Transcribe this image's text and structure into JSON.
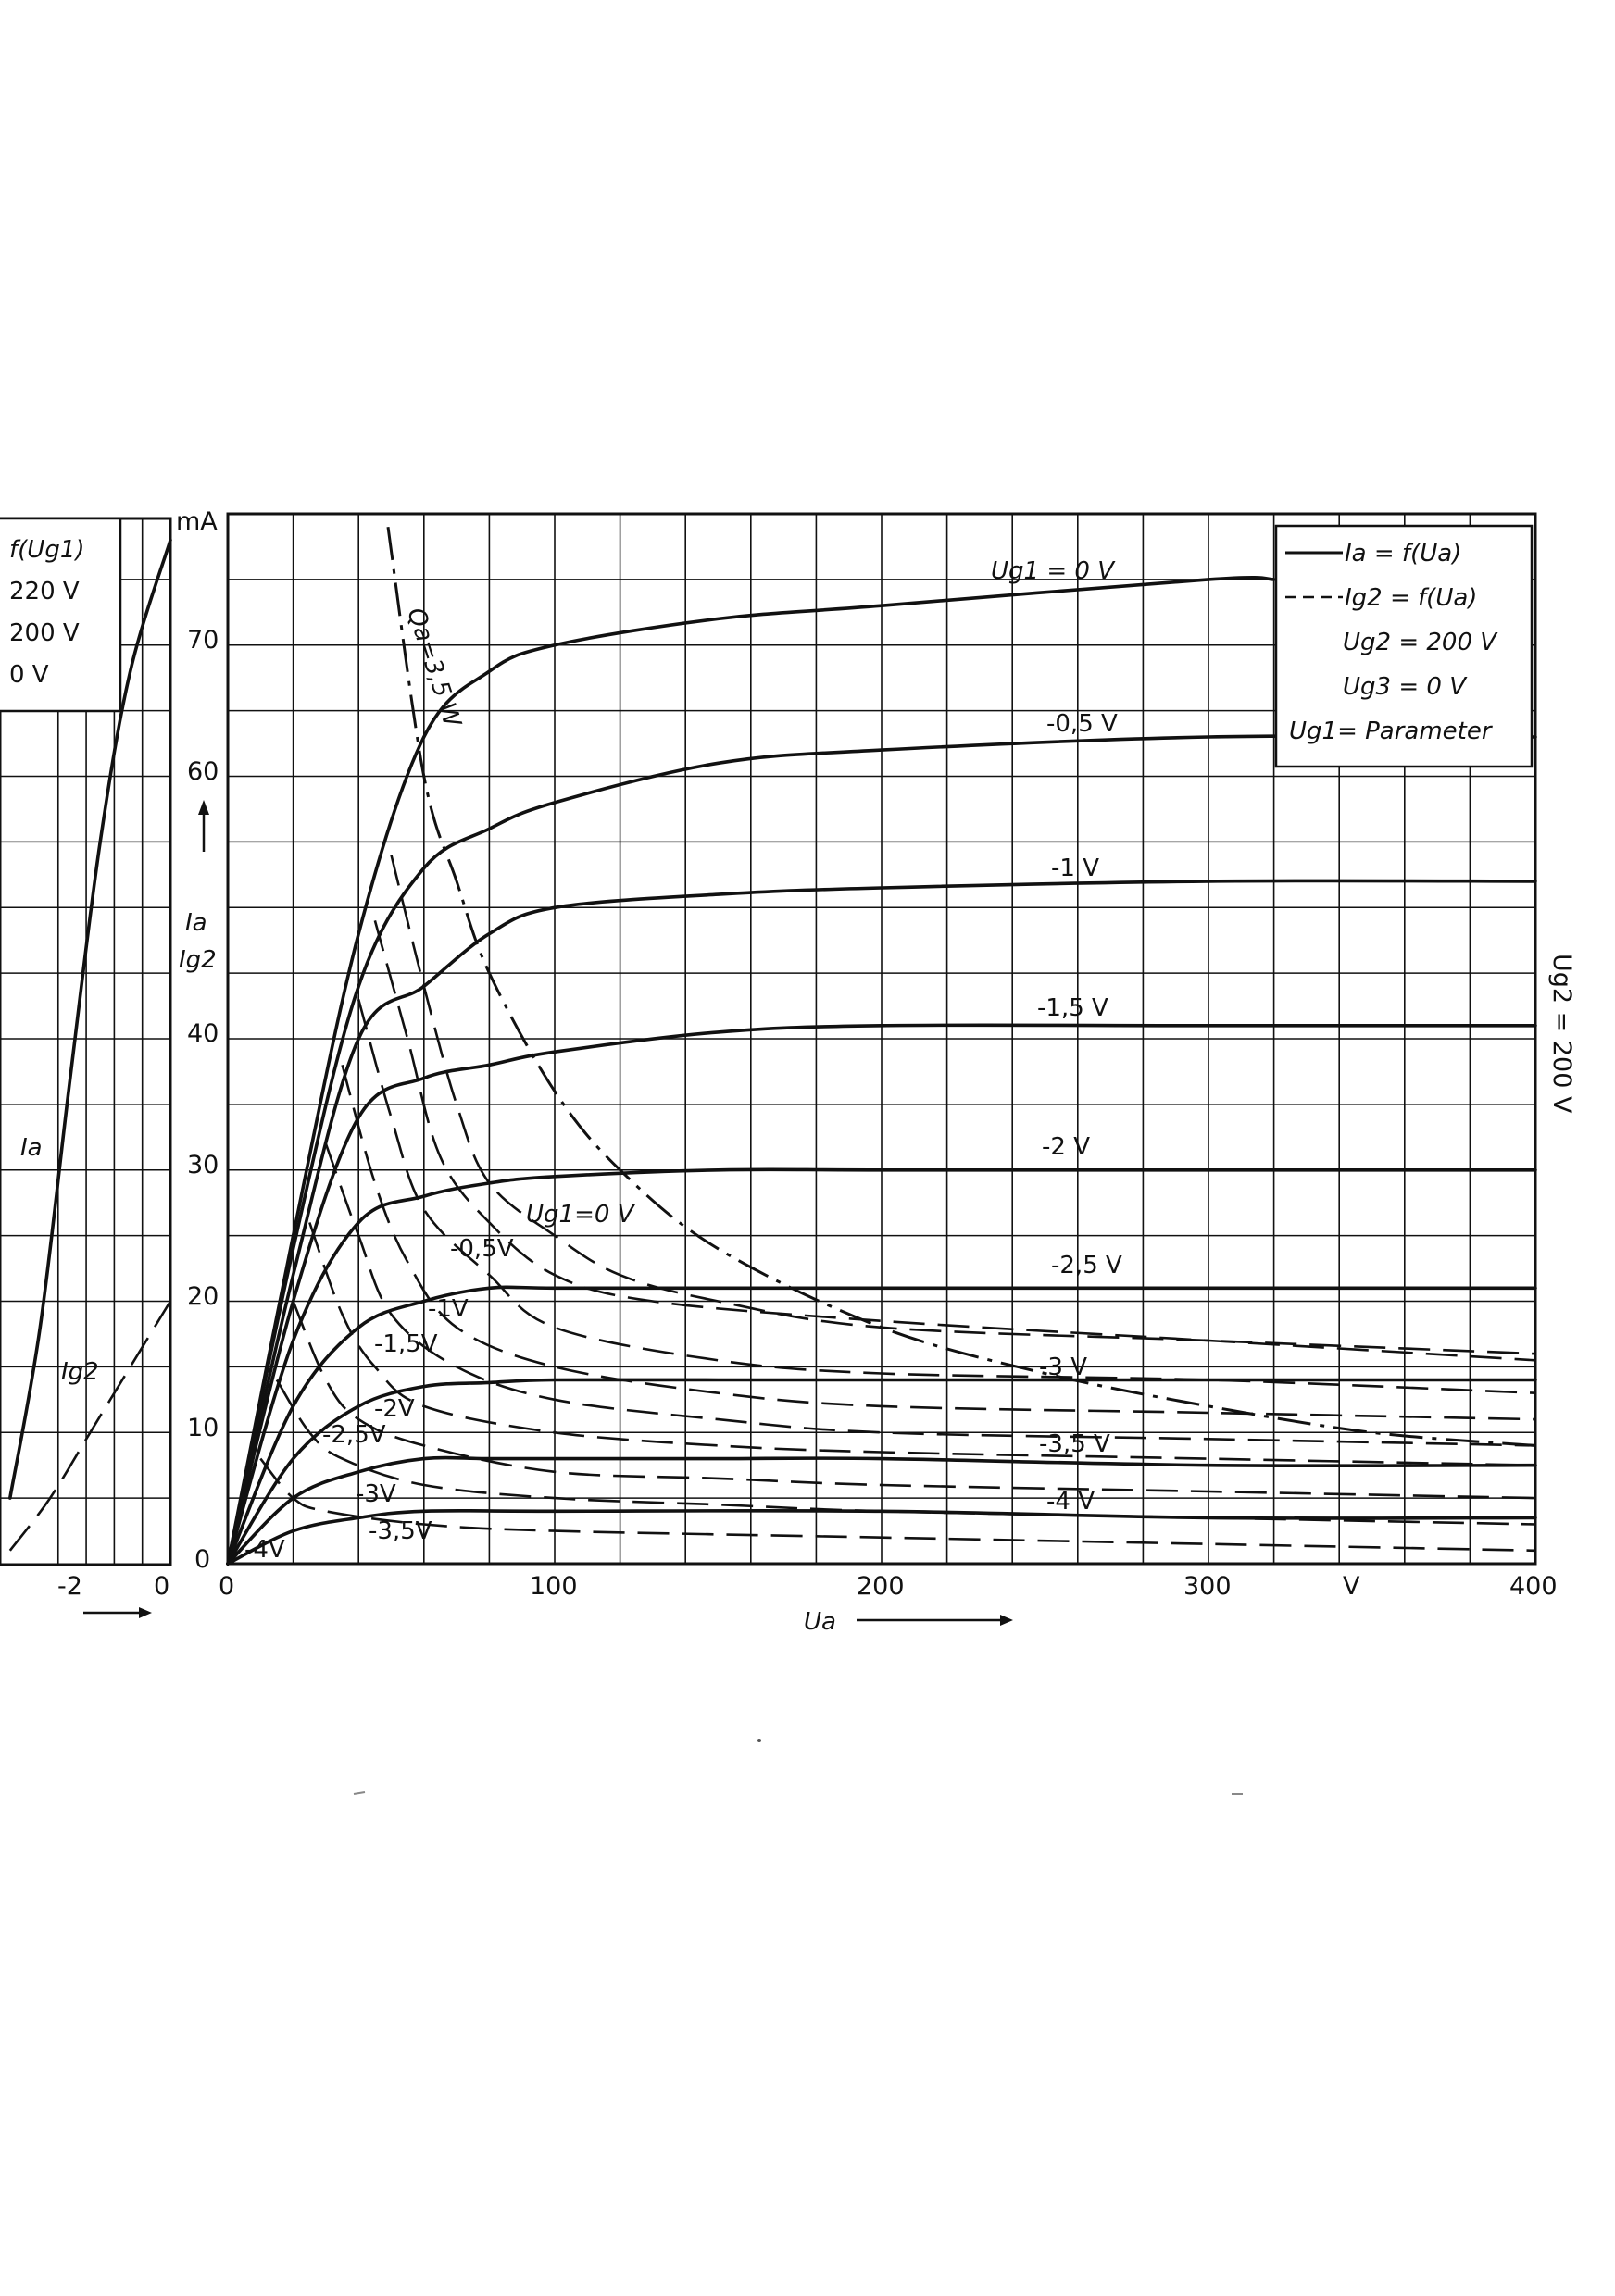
{
  "chart_data": [
    {
      "type": "line",
      "note_visible_labels": [
        "Ia",
        "Ig2",
        "-2",
        "0"
      ],
      "x_ticks": [
        "-2",
        "0"
      ],
      "legend": [
        "f(Ug1)",
        "220 V",
        "200 V",
        "0 V"
      ],
      "series": [
        {
          "name": "Ia",
          "style": "solid",
          "points": [
            [
              -3.2,
              5
            ],
            [
              -2.6,
              18
            ],
            [
              -2,
              37
            ],
            [
              -1.4,
              55
            ],
            [
              -0.8,
              68
            ],
            [
              0,
              78
            ]
          ]
        },
        {
          "name": "Ig2",
          "style": "dashed",
          "points": [
            [
              -3.2,
              1
            ],
            [
              -2.4,
              5
            ],
            [
              -1.6,
              10
            ],
            [
              -0.8,
              15
            ],
            [
              0,
              20
            ]
          ]
        }
      ]
    },
    {
      "type": "line",
      "y_unit": "mA",
      "x_unit": "V",
      "xlabel": "Ua",
      "ylabel": [
        "Ia",
        "Ig2"
      ],
      "xlim": [
        0,
        400
      ],
      "ylim": [
        0,
        80
      ],
      "x_ticks": [
        "0",
        "100",
        "200",
        "300",
        "V",
        "400"
      ],
      "y_ticks": [
        "0",
        "10",
        "20",
        "30",
        "40",
        "60",
        "70"
      ],
      "legend": {
        "ia": "Ia = f(Ua)",
        "ig": "Ig2 = f(Ua)",
        "ug2": "Ug2 = 200 V",
        "ug3": "Ug3 = 0 V",
        "ug1": "Ug1= Parameter"
      },
      "side_label": "Ug2 = 200 V",
      "power_label": "Qa=3,5 W",
      "anode_series": [
        {
          "label": "Ug1 = 0 V",
          "points": [
            [
              0,
              0
            ],
            [
              20,
              25
            ],
            [
              40,
              48
            ],
            [
              60,
              63
            ],
            [
              80,
              68
            ],
            [
              100,
              70
            ],
            [
              150,
              72
            ],
            [
              200,
              73
            ],
            [
              300,
              75
            ],
            [
              320,
              75
            ]
          ]
        },
        {
          "label": "-0,5 V",
          "points": [
            [
              0,
              0
            ],
            [
              20,
              24
            ],
            [
              40,
              44
            ],
            [
              60,
              53
            ],
            [
              80,
              56
            ],
            [
              100,
              58
            ],
            [
              150,
              61
            ],
            [
              200,
              62
            ],
            [
              300,
              63
            ],
            [
              400,
              63
            ]
          ]
        },
        {
          "label": "-1 V",
          "points": [
            [
              0,
              0
            ],
            [
              20,
              22
            ],
            [
              40,
              40
            ],
            [
              60,
              44
            ],
            [
              80,
              48
            ],
            [
              100,
              50
            ],
            [
              150,
              51
            ],
            [
              200,
              51.5
            ],
            [
              300,
              52
            ],
            [
              400,
              52
            ]
          ]
        },
        {
          "label": "-1,5 V",
          "points": [
            [
              0,
              0
            ],
            [
              20,
              20
            ],
            [
              40,
              34
            ],
            [
              60,
              37
            ],
            [
              80,
              38
            ],
            [
              100,
              39
            ],
            [
              150,
              40.5
            ],
            [
              200,
              41
            ],
            [
              300,
              41
            ],
            [
              400,
              41
            ]
          ]
        },
        {
          "label": "-2 V",
          "points": [
            [
              0,
              0
            ],
            [
              20,
              17
            ],
            [
              40,
              26
            ],
            [
              60,
              28
            ],
            [
              80,
              29
            ],
            [
              100,
              29.5
            ],
            [
              150,
              30
            ],
            [
              200,
              30
            ],
            [
              300,
              30
            ],
            [
              400,
              30
            ]
          ]
        },
        {
          "label": "-2,5 V",
          "points": [
            [
              0,
              0
            ],
            [
              20,
              12
            ],
            [
              40,
              18
            ],
            [
              60,
              20
            ],
            [
              80,
              21
            ],
            [
              100,
              21
            ],
            [
              150,
              21
            ],
            [
              200,
              21
            ],
            [
              300,
              21
            ],
            [
              400,
              21
            ]
          ]
        },
        {
          "label": "-3 V",
          "points": [
            [
              0,
              0
            ],
            [
              20,
              8
            ],
            [
              40,
              12
            ],
            [
              60,
              13.5
            ],
            [
              80,
              13.8
            ],
            [
              100,
              14
            ],
            [
              150,
              14
            ],
            [
              200,
              14
            ],
            [
              300,
              14
            ],
            [
              400,
              14
            ]
          ]
        },
        {
          "label": "-3,5 V",
          "points": [
            [
              0,
              0
            ],
            [
              20,
              5
            ],
            [
              40,
              7
            ],
            [
              60,
              8
            ],
            [
              80,
              8
            ],
            [
              100,
              8
            ],
            [
              150,
              8
            ],
            [
              200,
              8
            ],
            [
              300,
              7.5
            ],
            [
              400,
              7.5
            ]
          ]
        },
        {
          "label": "-4 V",
          "points": [
            [
              0,
              0
            ],
            [
              20,
              2.5
            ],
            [
              40,
              3.5
            ],
            [
              60,
              4
            ],
            [
              100,
              4
            ],
            [
              200,
              4
            ],
            [
              300,
              3.5
            ],
            [
              400,
              3.5
            ]
          ]
        }
      ],
      "screen_series": [
        {
          "label": "Ug1=0 V",
          "points": [
            [
              50,
              54
            ],
            [
              60,
              44
            ],
            [
              70,
              35
            ],
            [
              80,
              29
            ],
            [
              100,
              25
            ],
            [
              120,
              22
            ],
            [
              150,
              20
            ],
            [
              200,
              18
            ],
            [
              300,
              17
            ],
            [
              400,
              16
            ]
          ]
        },
        {
          "label": "-0,5V",
          "points": [
            [
              45,
              49
            ],
            [
              55,
              40
            ],
            [
              65,
              31
            ],
            [
              80,
              26
            ],
            [
              100,
              22
            ],
            [
              130,
              20
            ],
            [
              200,
              18.5
            ],
            [
              300,
              17
            ],
            [
              400,
              15.5
            ]
          ]
        },
        {
          "label": "-1V",
          "points": [
            [
              40,
              43
            ],
            [
              50,
              34
            ],
            [
              60,
              27
            ],
            [
              80,
              22
            ],
            [
              100,
              18
            ],
            [
              150,
              15.5
            ],
            [
              200,
              14.5
            ],
            [
              300,
              14
            ],
            [
              400,
              13
            ]
          ]
        },
        {
          "label": "-1,5V",
          "points": [
            [
              35,
              38
            ],
            [
              45,
              29
            ],
            [
              55,
              23
            ],
            [
              70,
              18
            ],
            [
              100,
              15
            ],
            [
              150,
              13
            ],
            [
              200,
              12
            ],
            [
              300,
              11.5
            ],
            [
              400,
              11
            ]
          ]
        },
        {
          "label": "-2V",
          "points": [
            [
              30,
              32
            ],
            [
              40,
              25
            ],
            [
              50,
              19
            ],
            [
              70,
              15
            ],
            [
              100,
              12.5
            ],
            [
              150,
              11
            ],
            [
              200,
              10
            ],
            [
              300,
              9.5
            ],
            [
              400,
              9
            ]
          ]
        },
        {
          "label": "-2,5V",
          "points": [
            [
              25,
              26
            ],
            [
              35,
              19
            ],
            [
              45,
              15
            ],
            [
              60,
              12
            ],
            [
              100,
              10
            ],
            [
              150,
              9
            ],
            [
              200,
              8.5
            ],
            [
              300,
              8
            ],
            [
              400,
              7.5
            ]
          ]
        },
        {
          "label": "-3V",
          "points": [
            [
              20,
              20
            ],
            [
              30,
              14
            ],
            [
              40,
              11
            ],
            [
              60,
              9
            ],
            [
              100,
              7
            ],
            [
              150,
              6.5
            ],
            [
              200,
              6
            ],
            [
              300,
              5.5
            ],
            [
              400,
              5
            ]
          ]
        },
        {
          "label": "-3,5V",
          "points": [
            [
              15,
              14
            ],
            [
              25,
              10
            ],
            [
              35,
              8
            ],
            [
              60,
              6
            ],
            [
              100,
              5
            ],
            [
              150,
              4.5
            ],
            [
              200,
              4
            ],
            [
              300,
              3.5
            ],
            [
              400,
              3
            ]
          ]
        },
        {
          "label": "-4V",
          "points": [
            [
              10,
              8
            ],
            [
              20,
              5
            ],
            [
              30,
              4
            ],
            [
              60,
              3
            ],
            [
              100,
              2.5
            ],
            [
              200,
              2
            ],
            [
              300,
              1.5
            ],
            [
              400,
              1
            ]
          ]
        }
      ],
      "power_curve": [
        [
          49,
          79
        ],
        [
          60,
          60
        ],
        [
          70,
          52
        ],
        [
          80,
          45
        ],
        [
          100,
          36
        ],
        [
          120,
          30
        ],
        [
          150,
          24
        ],
        [
          200,
          18
        ],
        [
          250,
          14.5
        ],
        [
          300,
          12
        ],
        [
          350,
          10
        ],
        [
          400,
          9
        ]
      ]
    }
  ]
}
